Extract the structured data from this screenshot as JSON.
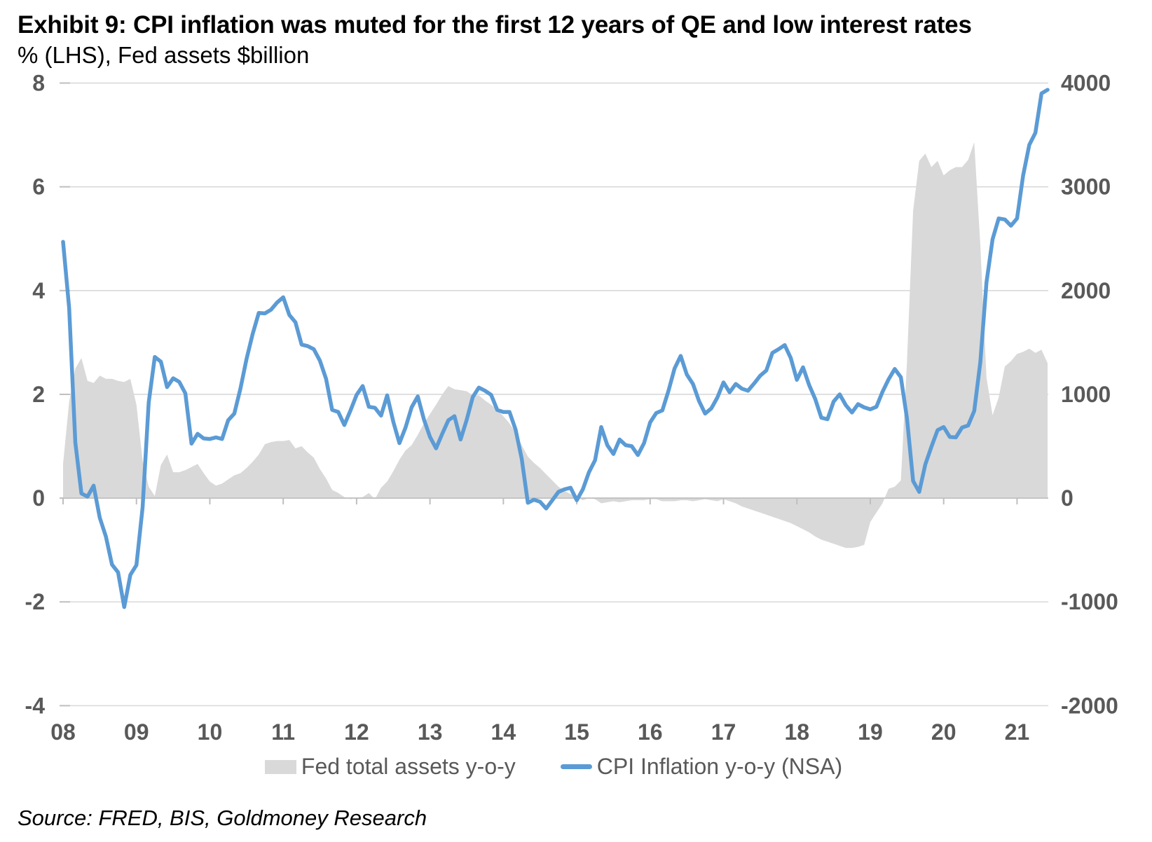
{
  "header": {
    "title": "Exhibit 9: CPI inflation was muted for the first 12 years of QE and low interest rates",
    "subtitle": "% (LHS), Fed assets $billion"
  },
  "legend": {
    "position": "bottom",
    "items": [
      {
        "label": "Fed total assets y-o-y",
        "swatch": "area",
        "color": "#D9D9D9"
      },
      {
        "label": "CPI Inflation y-o-y (NSA)",
        "swatch": "line",
        "color": "#5B9BD5"
      }
    ]
  },
  "footer": {
    "source": "Source: FRED, BIS, Goldmoney Research"
  },
  "colors": {
    "cpi_line": "#5B9BD5",
    "assets_area": "#D9D9D9",
    "gridline": "#D9D9D9",
    "axis_line": "#BFBFBF",
    "axis_text": "#595959",
    "title_text": "#000000"
  },
  "chart_data": {
    "type": "combo",
    "subtype": "area+line",
    "frequency": "monthly",
    "x_start": "2008-09",
    "x_end": "2022-02",
    "n_points": 162,
    "grid": "horizontal",
    "legend_position": "bottom",
    "x_axis": {
      "tick_labels": [
        "08",
        "09",
        "10",
        "11",
        "12",
        "13",
        "14",
        "15",
        "16",
        "17",
        "18",
        "19",
        "20",
        "21"
      ],
      "ticks_every_n_points": 12
    },
    "left_axis": {
      "title": "% (LHS)",
      "ticks": [
        8,
        6,
        4,
        2,
        0,
        -2,
        -4
      ],
      "range": [
        -4,
        8
      ],
      "applies_to": "CPI Inflation y-o-y (NSA)"
    },
    "right_axis": {
      "title": "Fed assets $billion",
      "ticks": [
        4000,
        3000,
        2000,
        1000,
        0,
        -1000,
        -2000
      ],
      "range": [
        -2000,
        4000
      ],
      "applies_to": "Fed total assets y-o-y"
    },
    "series": [
      {
        "name": "Fed total assets y-o-y",
        "type": "area",
        "axis": "right",
        "unit": "$billion",
        "color": "#D9D9D9",
        "values": [
          330,
          930,
          1250,
          1350,
          1130,
          1110,
          1180,
          1150,
          1150,
          1130,
          1120,
          1150,
          900,
          360,
          110,
          20,
          320,
          420,
          250,
          250,
          270,
          300,
          330,
          240,
          160,
          120,
          140,
          180,
          220,
          240,
          290,
          350,
          420,
          520,
          540,
          550,
          550,
          560,
          480,
          500,
          440,
          390,
          280,
          190,
          80,
          50,
          10,
          -10,
          0,
          10,
          50,
          -10,
          100,
          160,
          260,
          370,
          460,
          510,
          610,
          720,
          810,
          900,
          1000,
          1080,
          1050,
          1040,
          1030,
          990,
          990,
          940,
          900,
          850,
          790,
          720,
          630,
          510,
          400,
          340,
          290,
          230,
          170,
          110,
          70,
          40,
          10,
          -20,
          0,
          -10,
          -50,
          -40,
          -30,
          -40,
          -30,
          -20,
          -20,
          -20,
          -10,
          -10,
          -30,
          -30,
          -30,
          -20,
          -20,
          -30,
          -20,
          -10,
          -20,
          -30,
          -10,
          -30,
          -50,
          -80,
          -100,
          -120,
          -140,
          -160,
          -180,
          -200,
          -220,
          -240,
          -270,
          -300,
          -330,
          -370,
          -400,
          -420,
          -440,
          -460,
          -480,
          -480,
          -470,
          -450,
          -230,
          -140,
          -50,
          90,
          110,
          170,
          1310,
          2770,
          3250,
          3320,
          3190,
          3250,
          3110,
          3160,
          3190,
          3190,
          3260,
          3430,
          2440,
          1160,
          800,
          970,
          1270,
          1320,
          1390,
          1410,
          1440,
          1400,
          1430,
          1300
        ]
      },
      {
        "name": "CPI Inflation y-o-y (NSA)",
        "type": "line",
        "axis": "left",
        "unit": "%",
        "color": "#5B9BD5",
        "values": [
          4.94,
          3.66,
          1.07,
          0.09,
          0.03,
          0.24,
          -0.38,
          -0.74,
          -1.28,
          -1.43,
          -2.1,
          -1.48,
          -1.29,
          -0.18,
          1.84,
          2.72,
          2.63,
          2.14,
          2.31,
          2.24,
          2.02,
          1.05,
          1.24,
          1.15,
          1.14,
          1.17,
          1.14,
          1.5,
          1.63,
          2.11,
          2.68,
          3.16,
          3.57,
          3.56,
          3.63,
          3.77,
          3.87,
          3.53,
          3.39,
          2.96,
          2.93,
          2.87,
          2.65,
          2.3,
          1.7,
          1.66,
          1.41,
          1.69,
          1.99,
          2.16,
          1.76,
          1.74,
          1.59,
          1.98,
          1.47,
          1.06,
          1.36,
          1.75,
          1.96,
          1.52,
          1.18,
          0.96,
          1.24,
          1.5,
          1.58,
          1.13,
          1.51,
          1.95,
          2.13,
          2.07,
          1.99,
          1.7,
          1.66,
          1.66,
          1.32,
          0.76,
          -0.09,
          -0.03,
          -0.07,
          -0.2,
          -0.04,
          0.12,
          0.17,
          0.2,
          -0.04,
          0.17,
          0.5,
          0.73,
          1.37,
          1.02,
          0.85,
          1.13,
          1.02,
          1.0,
          0.83,
          1.06,
          1.46,
          1.64,
          1.69,
          2.07,
          2.5,
          2.74,
          2.38,
          2.2,
          1.87,
          1.63,
          1.73,
          1.94,
          2.23,
          2.04,
          2.2,
          2.11,
          2.07,
          2.21,
          2.36,
          2.46,
          2.8,
          2.87,
          2.95,
          2.7,
          2.28,
          2.52,
          2.18,
          1.91,
          1.55,
          1.52,
          1.86,
          2.0,
          1.79,
          1.65,
          1.81,
          1.75,
          1.71,
          1.76,
          2.05,
          2.29,
          2.49,
          2.33,
          1.54,
          0.33,
          0.12,
          0.65,
          0.99,
          1.31,
          1.37,
          1.18,
          1.17,
          1.36,
          1.4,
          1.68,
          2.62,
          4.16,
          4.99,
          5.39,
          5.37,
          5.25,
          5.39,
          6.22,
          6.81,
          7.04,
          7.8,
          7.87
        ]
      }
    ]
  }
}
